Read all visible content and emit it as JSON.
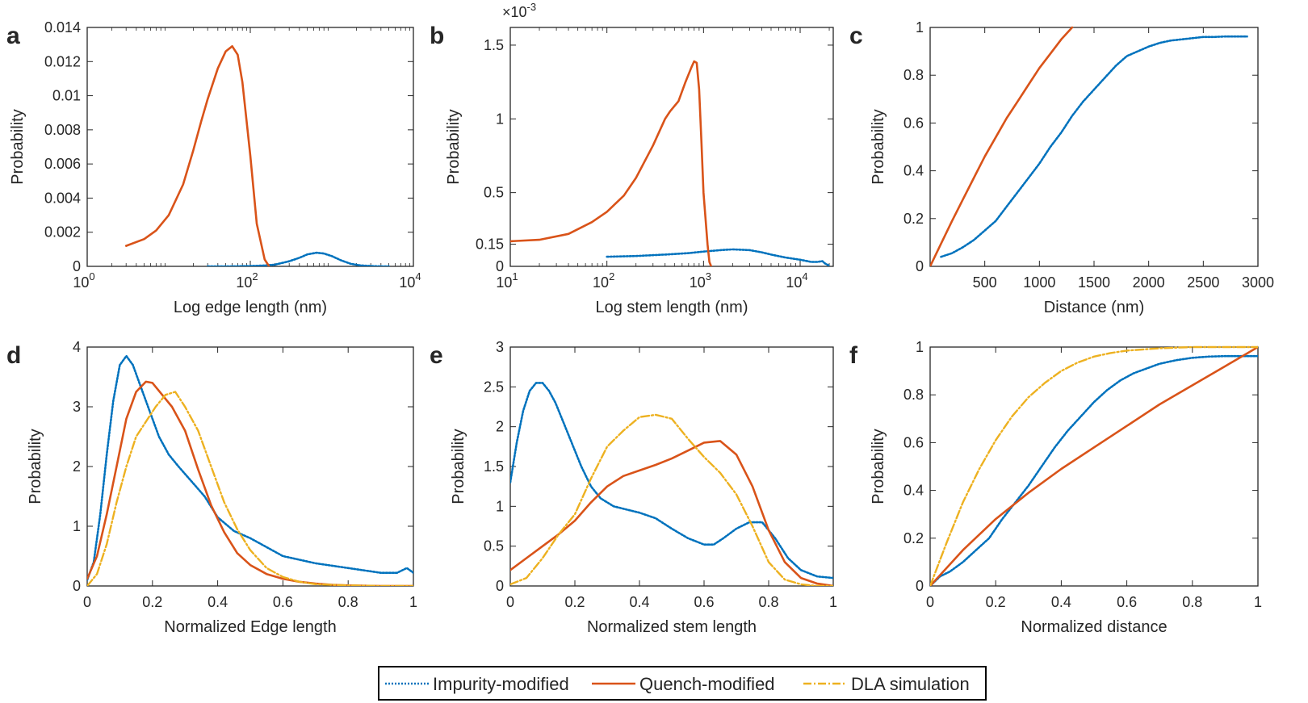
{
  "legend": {
    "entries": [
      {
        "label": "Impurity-modified",
        "series": "impurity",
        "color": "#0072BD",
        "style": "dotted"
      },
      {
        "label": "Quench-modified",
        "series": "quench",
        "color": "#D95319",
        "style": "solid"
      },
      {
        "label": "DLA simulation",
        "series": "dla",
        "color": "#EDB120",
        "style": "dashdot"
      }
    ]
  },
  "chart_data": [
    {
      "id": "a",
      "letter": "a",
      "type": "line",
      "xscale": "log",
      "xlabel": "Log edge length (nm)",
      "ylabel": "Probability",
      "xlim": [
        1,
        10000
      ],
      "ylim": [
        0,
        0.014
      ],
      "xticks": [
        1,
        100,
        10000
      ],
      "xticklabels": [
        [
          "10",
          "0"
        ],
        [
          "10",
          "2"
        ],
        [
          "10",
          "4"
        ]
      ],
      "yticks": [
        0,
        0.002,
        0.004,
        0.006,
        0.008,
        0.01,
        0.012,
        0.014
      ],
      "yticklabels": [
        "0",
        "0.002",
        "0.004",
        "0.006",
        "0.008",
        "0.01",
        "0.012",
        "0.014"
      ],
      "series": [
        {
          "name": "Impurity-modified",
          "key": "impurity",
          "x": [
            30,
            60,
            100,
            150,
            200,
            300,
            400,
            500,
            650,
            800,
            1000,
            1300,
            1700,
            2200,
            3000,
            4000,
            5000
          ],
          "y": [
            0,
            0,
            2e-05,
            5e-05,
            0.0001,
            0.0003,
            0.0005,
            0.0007,
            0.0008,
            0.00075,
            0.0006,
            0.00035,
            0.00015,
            6e-05,
            2e-05,
            0,
            0
          ]
        },
        {
          "name": "Quench-modified",
          "key": "quench",
          "x": [
            3,
            5,
            7,
            10,
            15,
            20,
            25,
            30,
            40,
            50,
            60,
            70,
            80,
            100,
            120,
            150,
            170
          ],
          "y": [
            0.0012,
            0.0016,
            0.0021,
            0.003,
            0.0048,
            0.0068,
            0.0085,
            0.0098,
            0.0116,
            0.0126,
            0.0129,
            0.0124,
            0.0108,
            0.0065,
            0.0025,
            0.0004,
            0
          ]
        }
      ]
    },
    {
      "id": "b",
      "letter": "b",
      "type": "line",
      "xscale": "log",
      "xlabel": "Log stem length (nm)",
      "ylabel": "Probability",
      "multiplier": [
        "×10",
        "-3"
      ],
      "xlim": [
        10,
        22000
      ],
      "ylim": [
        0,
        1.62
      ],
      "xticks": [
        10,
        100,
        1000,
        10000
      ],
      "xticklabels": [
        [
          "10",
          "1"
        ],
        [
          "10",
          "2"
        ],
        [
          "10",
          "3"
        ],
        [
          "10",
          "4"
        ]
      ],
      "yticks": [
        0,
        0.15,
        0.5,
        1,
        1.5
      ],
      "yticklabels": [
        "0",
        "0.15",
        "0.5",
        "1",
        "1.5"
      ],
      "series": [
        {
          "name": "Impurity-modified",
          "key": "impurity",
          "x": [
            100,
            200,
            400,
            700,
            1000,
            1500,
            2000,
            3000,
            4000,
            5000,
            7000,
            10000,
            13000,
            15000,
            17000,
            18000,
            20000
          ],
          "y": [
            0.065,
            0.07,
            0.08,
            0.09,
            0.1,
            0.11,
            0.115,
            0.11,
            0.095,
            0.08,
            0.06,
            0.045,
            0.03,
            0.03,
            0.035,
            0.02,
            0.005
          ]
        },
        {
          "name": "Quench-modified",
          "key": "quench",
          "x": [
            10,
            20,
            40,
            70,
            100,
            150,
            200,
            300,
            400,
            450,
            550,
            650,
            750,
            800,
            850,
            900,
            950,
            1000,
            1100,
            1150,
            1200
          ],
          "y": [
            0.17,
            0.18,
            0.22,
            0.3,
            0.37,
            0.48,
            0.6,
            0.82,
            1.0,
            1.05,
            1.12,
            1.25,
            1.35,
            1.39,
            1.38,
            1.2,
            0.85,
            0.5,
            0.15,
            0.03,
            0
          ]
        }
      ]
    },
    {
      "id": "c",
      "letter": "c",
      "type": "line",
      "xscale": "linear",
      "xlabel": "Distance (nm)",
      "ylabel": "Probability",
      "xlim": [
        0,
        3000
      ],
      "ylim": [
        0,
        1
      ],
      "xticks": [
        500,
        1000,
        1500,
        2000,
        2500,
        3000
      ],
      "xticklabels": [
        "500",
        "1000",
        "1500",
        "2000",
        "2500",
        "3000"
      ],
      "yticks": [
        0,
        0.2,
        0.4,
        0.6,
        0.8,
        1
      ],
      "yticklabels": [
        "0",
        "0.2",
        "0.4",
        "0.6",
        "0.8",
        "1"
      ],
      "series": [
        {
          "name": "Impurity-modified",
          "key": "impurity",
          "x": [
            100,
            200,
            300,
            400,
            500,
            600,
            700,
            800,
            900,
            1000,
            1100,
            1200,
            1300,
            1400,
            1500,
            1600,
            1700,
            1800,
            1900,
            2000,
            2100,
            2200,
            2300,
            2400,
            2500,
            2600,
            2700,
            2800,
            2900
          ],
          "y": [
            0.04,
            0.055,
            0.08,
            0.11,
            0.15,
            0.19,
            0.25,
            0.31,
            0.37,
            0.43,
            0.5,
            0.56,
            0.63,
            0.69,
            0.74,
            0.79,
            0.84,
            0.88,
            0.9,
            0.92,
            0.935,
            0.945,
            0.95,
            0.955,
            0.96,
            0.96,
            0.962,
            0.962,
            0.962
          ]
        },
        {
          "name": "Quench-modified",
          "key": "quench",
          "x": [
            0,
            100,
            200,
            300,
            400,
            500,
            600,
            700,
            800,
            900,
            1000,
            1100,
            1200,
            1300
          ],
          "y": [
            0,
            0.095,
            0.19,
            0.28,
            0.37,
            0.46,
            0.54,
            0.62,
            0.69,
            0.76,
            0.83,
            0.89,
            0.95,
            1.0
          ]
        }
      ]
    },
    {
      "id": "d",
      "letter": "d",
      "type": "line",
      "xscale": "linear",
      "xlabel": "Normalized Edge length",
      "ylabel": "Probability",
      "xlim": [
        0,
        1
      ],
      "ylim": [
        0,
        4
      ],
      "xticks": [
        0,
        0.2,
        0.4,
        0.6,
        0.8,
        1
      ],
      "xticklabels": [
        "0",
        "0.2",
        "0.4",
        "0.6",
        "0.8",
        "1"
      ],
      "yticks": [
        0,
        1,
        2,
        3,
        4
      ],
      "yticklabels": [
        "0",
        "1",
        "2",
        "3",
        "4"
      ],
      "series": [
        {
          "name": "Impurity-modified",
          "key": "impurity",
          "x": [
            0,
            0.02,
            0.04,
            0.06,
            0.08,
            0.1,
            0.12,
            0.14,
            0.16,
            0.18,
            0.2,
            0.22,
            0.25,
            0.28,
            0.32,
            0.36,
            0.4,
            0.45,
            0.5,
            0.55,
            0.6,
            0.7,
            0.8,
            0.9,
            0.95,
            0.98,
            1.0
          ],
          "y": [
            0.1,
            0.4,
            1.2,
            2.2,
            3.1,
            3.7,
            3.85,
            3.7,
            3.4,
            3.1,
            2.8,
            2.5,
            2.2,
            2.0,
            1.75,
            1.5,
            1.15,
            0.92,
            0.8,
            0.65,
            0.5,
            0.38,
            0.3,
            0.22,
            0.22,
            0.3,
            0.22
          ]
        },
        {
          "name": "Quench-modified",
          "key": "quench",
          "x": [
            0,
            0.03,
            0.06,
            0.09,
            0.12,
            0.15,
            0.18,
            0.2,
            0.23,
            0.26,
            0.3,
            0.34,
            0.38,
            0.42,
            0.46,
            0.5,
            0.55,
            0.6,
            0.65,
            0.7,
            0.75,
            0.8,
            0.9,
            1.0
          ],
          "y": [
            0.12,
            0.5,
            1.2,
            2.0,
            2.8,
            3.25,
            3.42,
            3.4,
            3.2,
            3.0,
            2.6,
            1.95,
            1.35,
            0.9,
            0.55,
            0.35,
            0.2,
            0.12,
            0.07,
            0.04,
            0.02,
            0.01,
            0,
            0
          ]
        },
        {
          "name": "DLA simulation",
          "key": "dla",
          "x": [
            0,
            0.03,
            0.06,
            0.09,
            0.12,
            0.15,
            0.18,
            0.21,
            0.24,
            0.27,
            0.3,
            0.34,
            0.38,
            0.42,
            0.46,
            0.5,
            0.55,
            0.6,
            0.65,
            0.7,
            0.8,
            0.9,
            1.0
          ],
          "y": [
            0,
            0.2,
            0.7,
            1.4,
            2.0,
            2.5,
            2.75,
            3.0,
            3.2,
            3.25,
            3.0,
            2.6,
            2.0,
            1.4,
            0.95,
            0.6,
            0.3,
            0.15,
            0.07,
            0.03,
            0.01,
            0,
            0
          ]
        }
      ]
    },
    {
      "id": "e",
      "letter": "e",
      "type": "line",
      "xscale": "linear",
      "xlabel": "Normalized stem length",
      "ylabel": "Probability",
      "xlim": [
        0,
        1
      ],
      "ylim": [
        0,
        3
      ],
      "xticks": [
        0,
        0.2,
        0.4,
        0.6,
        0.8,
        1
      ],
      "xticklabels": [
        "0",
        "0.2",
        "0.4",
        "0.6",
        "0.8",
        "1"
      ],
      "yticks": [
        0,
        0.5,
        1,
        1.5,
        2,
        2.5,
        3
      ],
      "yticklabels": [
        "0",
        "0.5",
        "1",
        "1.5",
        "2",
        "2.5",
        "3"
      ],
      "series": [
        {
          "name": "Impurity-modified",
          "key": "impurity",
          "x": [
            0,
            0.02,
            0.04,
            0.06,
            0.08,
            0.1,
            0.12,
            0.14,
            0.16,
            0.18,
            0.2,
            0.22,
            0.25,
            0.28,
            0.32,
            0.36,
            0.4,
            0.45,
            0.5,
            0.55,
            0.6,
            0.63,
            0.66,
            0.7,
            0.74,
            0.78,
            0.82,
            0.86,
            0.9,
            0.95,
            1.0
          ],
          "y": [
            1.3,
            1.8,
            2.2,
            2.45,
            2.55,
            2.55,
            2.45,
            2.3,
            2.1,
            1.9,
            1.7,
            1.5,
            1.25,
            1.1,
            1.0,
            0.96,
            0.92,
            0.85,
            0.72,
            0.6,
            0.52,
            0.52,
            0.6,
            0.72,
            0.8,
            0.8,
            0.6,
            0.35,
            0.2,
            0.12,
            0.1
          ]
        },
        {
          "name": "Quench-modified",
          "key": "quench",
          "x": [
            0,
            0.05,
            0.1,
            0.15,
            0.2,
            0.25,
            0.3,
            0.35,
            0.4,
            0.45,
            0.5,
            0.55,
            0.6,
            0.65,
            0.7,
            0.75,
            0.8,
            0.85,
            0.9,
            0.95,
            1.0
          ],
          "y": [
            0.2,
            0.35,
            0.5,
            0.65,
            0.82,
            1.05,
            1.25,
            1.38,
            1.45,
            1.52,
            1.6,
            1.7,
            1.8,
            1.82,
            1.65,
            1.25,
            0.7,
            0.3,
            0.1,
            0.03,
            0
          ]
        },
        {
          "name": "DLA simulation",
          "key": "dla",
          "x": [
            0,
            0.05,
            0.1,
            0.15,
            0.2,
            0.25,
            0.3,
            0.35,
            0.4,
            0.45,
            0.5,
            0.55,
            0.6,
            0.65,
            0.7,
            0.75,
            0.8,
            0.85,
            0.9,
            0.95,
            1.0
          ],
          "y": [
            0.02,
            0.1,
            0.35,
            0.65,
            0.9,
            1.35,
            1.75,
            1.95,
            2.12,
            2.15,
            2.1,
            1.85,
            1.62,
            1.42,
            1.15,
            0.75,
            0.3,
            0.08,
            0.02,
            0,
            0
          ]
        }
      ]
    },
    {
      "id": "f",
      "letter": "f",
      "type": "line",
      "xscale": "linear",
      "xlabel": "Normalized distance",
      "ylabel": "Probability",
      "xlim": [
        0,
        1
      ],
      "ylim": [
        0,
        1
      ],
      "xticks": [
        0,
        0.2,
        0.4,
        0.6,
        0.8,
        1
      ],
      "xticklabels": [
        "0",
        "0.2",
        "0.4",
        "0.6",
        "0.8",
        "1"
      ],
      "yticks": [
        0,
        0.2,
        0.4,
        0.6,
        0.8,
        1
      ],
      "yticklabels": [
        "0",
        "0.2",
        "0.4",
        "0.6",
        "0.8",
        "1"
      ],
      "series": [
        {
          "name": "Impurity-modified",
          "key": "impurity",
          "x": [
            0,
            0.03,
            0.06,
            0.1,
            0.14,
            0.18,
            0.22,
            0.26,
            0.3,
            0.34,
            0.38,
            0.42,
            0.46,
            0.5,
            0.54,
            0.58,
            0.62,
            0.66,
            0.7,
            0.75,
            0.8,
            0.85,
            0.9,
            0.95,
            1.0
          ],
          "y": [
            0,
            0.04,
            0.06,
            0.1,
            0.15,
            0.2,
            0.28,
            0.35,
            0.42,
            0.5,
            0.58,
            0.65,
            0.71,
            0.77,
            0.82,
            0.86,
            0.89,
            0.91,
            0.93,
            0.945,
            0.955,
            0.96,
            0.962,
            0.962,
            0.962
          ]
        },
        {
          "name": "Quench-modified",
          "key": "quench",
          "x": [
            0,
            0.1,
            0.2,
            0.3,
            0.4,
            0.5,
            0.6,
            0.7,
            0.8,
            0.9,
            1.0
          ],
          "y": [
            0,
            0.15,
            0.28,
            0.39,
            0.49,
            0.58,
            0.67,
            0.76,
            0.84,
            0.92,
            1.0
          ]
        },
        {
          "name": "DLA simulation",
          "key": "dla",
          "x": [
            0,
            0.05,
            0.1,
            0.15,
            0.2,
            0.25,
            0.3,
            0.35,
            0.4,
            0.45,
            0.5,
            0.55,
            0.6,
            0.7,
            0.8,
            0.9,
            1.0
          ],
          "y": [
            0,
            0.18,
            0.35,
            0.49,
            0.61,
            0.71,
            0.79,
            0.85,
            0.9,
            0.935,
            0.96,
            0.975,
            0.985,
            0.995,
            1.0,
            1.0,
            1.0
          ]
        }
      ]
    }
  ]
}
